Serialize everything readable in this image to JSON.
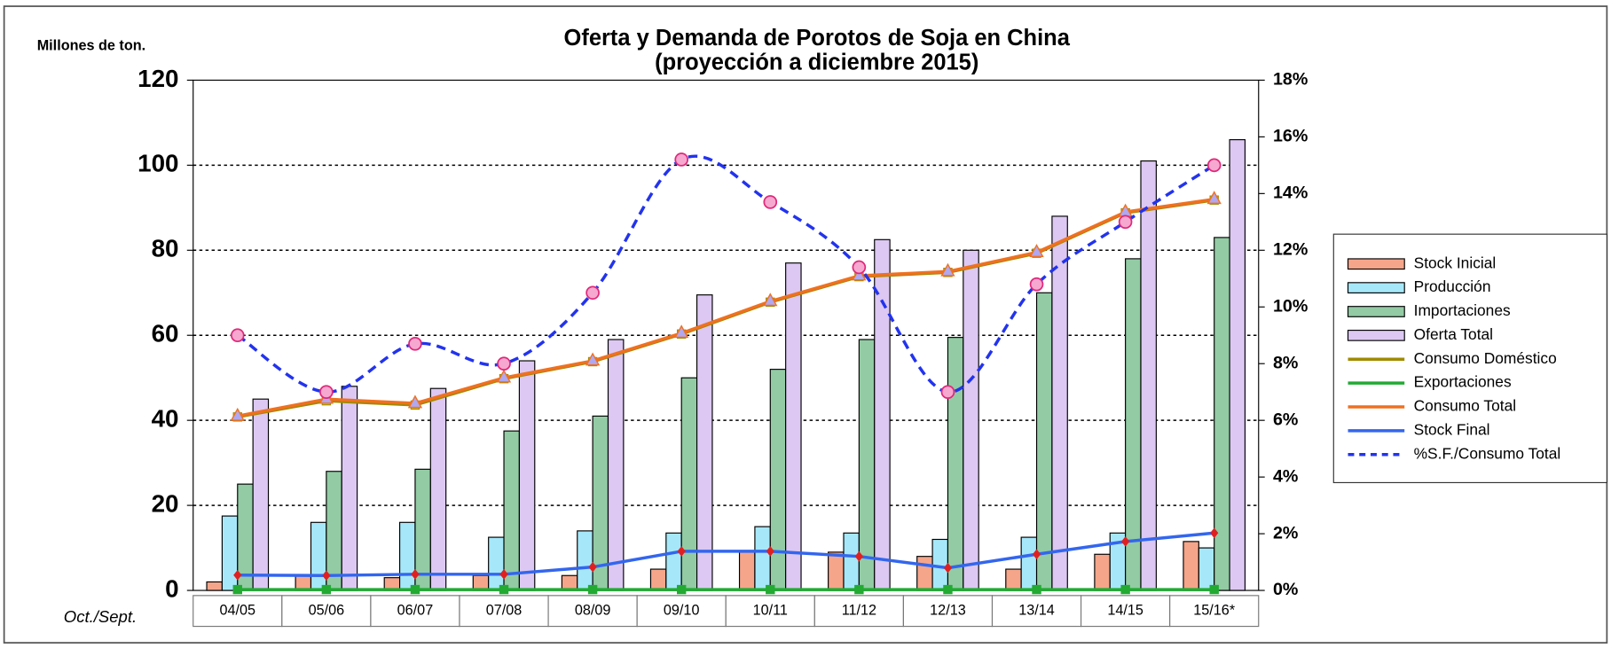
{
  "chart_data": {
    "type": "bar-line",
    "title": "Oferta y Demanda de Porotos de Soja en China",
    "subtitle": "(proyección a diciembre 2015)",
    "y_label": "Millones de ton.",
    "x_label": "Oct./Sept.",
    "categories": [
      "04/05",
      "05/06",
      "06/07",
      "07/08",
      "08/09",
      "09/10",
      "10/11",
      "11/12",
      "12/13",
      "13/14",
      "14/15",
      "15/16*"
    ],
    "series": [
      {
        "name": "Stock Inicial",
        "kind": "bar",
        "color": "#f5a58a",
        "values": [
          2,
          3.5,
          3,
          3.5,
          3.5,
          5,
          9,
          9,
          8,
          5,
          8.5,
          11.5
        ]
      },
      {
        "name": "Producción",
        "kind": "bar",
        "color": "#a6e8fa",
        "values": [
          17.5,
          16,
          16,
          12.5,
          14,
          13.5,
          15,
          13.5,
          12,
          12.5,
          13.5,
          10
        ]
      },
      {
        "name": "Importaciones",
        "kind": "bar",
        "color": "#92cba4",
        "values": [
          25,
          28,
          28.5,
          37.5,
          41,
          50,
          52,
          59,
          59.5,
          70,
          78,
          83
        ]
      },
      {
        "name": "Oferta Total",
        "kind": "bar",
        "color": "#dcc8f2",
        "values": [
          45,
          48,
          47.5,
          54,
          59,
          69.5,
          77,
          82.5,
          80,
          88,
          101,
          106
        ]
      },
      {
        "name": "Consumo Doméstico",
        "kind": "line",
        "color": "#a08a00",
        "values": [
          40.8,
          44.6,
          43.6,
          49.8,
          53.8,
          60.3,
          67.8,
          73.8,
          74.8,
          79.3,
          88.8,
          91.8
        ]
      },
      {
        "name": "Exportaciones",
        "kind": "line",
        "color": "#22aa33",
        "values": [
          0.2,
          0.2,
          0.2,
          0.2,
          0.2,
          0.2,
          0.2,
          0.2,
          0.2,
          0.2,
          0.2,
          0.2
        ]
      },
      {
        "name": "Consumo Total",
        "kind": "line",
        "color": "#f07020",
        "values": [
          41,
          45,
          44,
          50,
          54,
          60.5,
          68,
          74,
          75,
          79.5,
          89,
          92
        ]
      },
      {
        "name": "Stock Final",
        "kind": "line",
        "color": "#3366ee",
        "values": [
          3.6,
          3.5,
          3.8,
          3.8,
          5.5,
          9.2,
          9.2,
          8,
          5.3,
          8.5,
          11.5,
          13.5
        ]
      },
      {
        "name": "%S.F./Consumo Total",
        "kind": "dashed",
        "axis": "y2",
        "color": "#2233ee",
        "values": [
          9.0,
          7.0,
          8.7,
          8.0,
          10.5,
          15.2,
          13.7,
          11.4,
          7.0,
          10.8,
          13.0,
          15.0
        ]
      }
    ],
    "ylim": [
      0,
      120
    ],
    "yticks": [
      0,
      20,
      40,
      60,
      80,
      100,
      120
    ],
    "y2lim": [
      0,
      18
    ],
    "y2ticks": [
      {
        "value": 0,
        "label": "0%"
      },
      {
        "value": 2,
        "label": "2%"
      },
      {
        "value": 4,
        "label": "4%"
      },
      {
        "value": 6,
        "label": "6%"
      },
      {
        "value": 8,
        "label": "8%"
      },
      {
        "value": 10,
        "label": "10%"
      },
      {
        "value": 12,
        "label": "12%"
      },
      {
        "value": 14,
        "label": "14%"
      },
      {
        "value": 16,
        "label": "16%"
      },
      {
        "value": 18,
        "label": "18%"
      }
    ],
    "grid": true,
    "legend": "right"
  }
}
